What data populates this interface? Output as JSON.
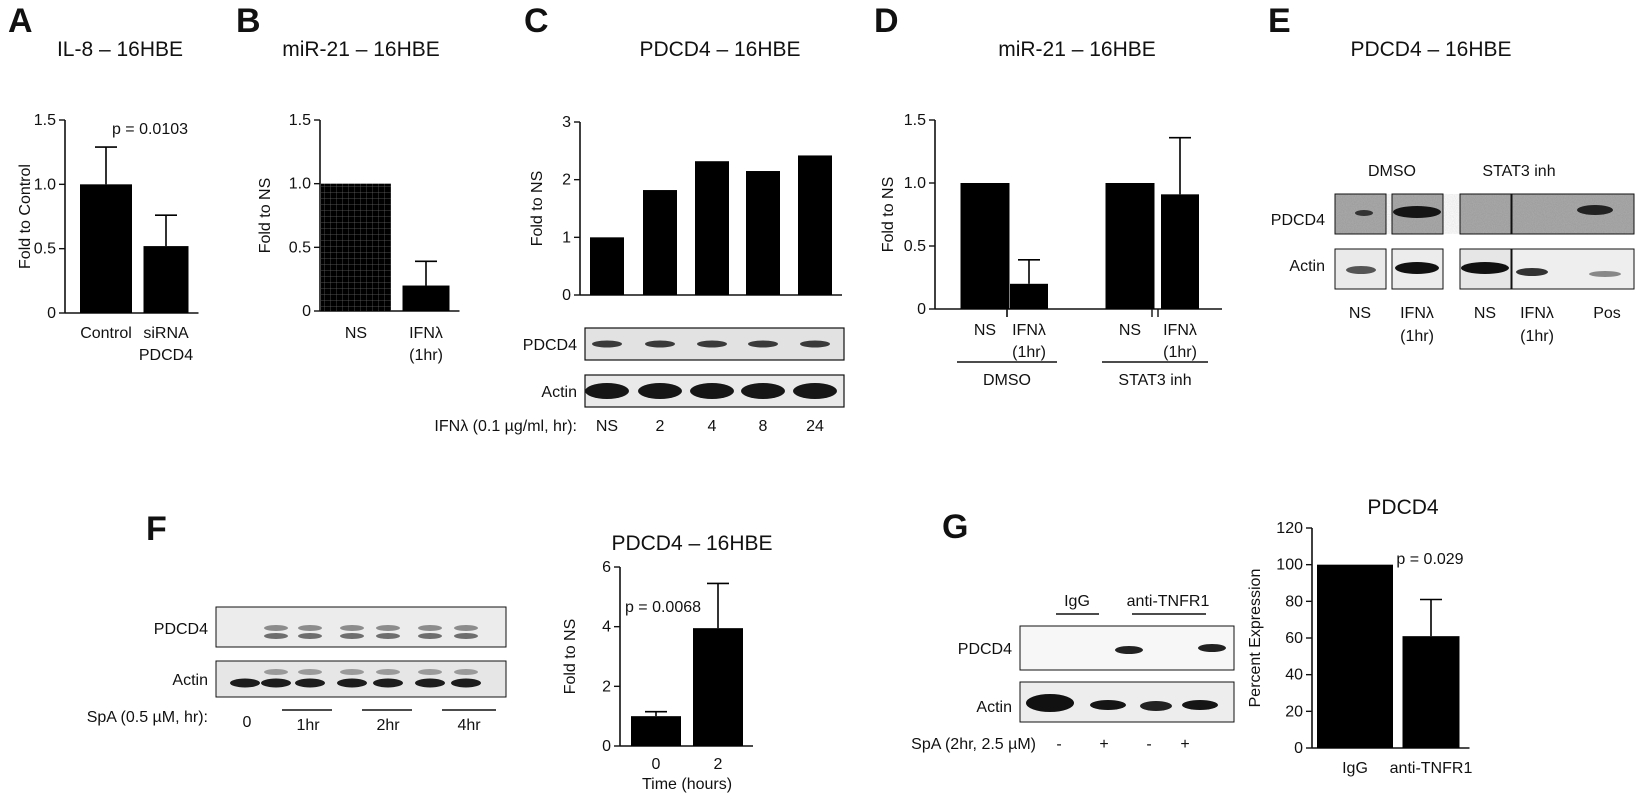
{
  "panels": {
    "A": "A",
    "B": "B",
    "C": "C",
    "D": "D",
    "E": "E",
    "F": "F",
    "G": "G"
  },
  "chart_data": [
    {
      "id": "A",
      "type": "bar",
      "title": "IL-8 – 16HBE",
      "ylabel": "Fold to Control",
      "categories": [
        [
          "Control"
        ],
        [
          "siRNA",
          "PDCD4"
        ]
      ],
      "values": [
        1.0,
        0.52
      ],
      "errors": [
        0.29,
        0.24
      ],
      "ylim": [
        0,
        1.5
      ],
      "yticks": [
        "0",
        "0.5",
        "1.0",
        "1.5"
      ],
      "annotation": "p = 0.0103"
    },
    {
      "id": "B",
      "type": "bar",
      "title": "miR-21 – 16HBE",
      "ylabel": "Fold to NS",
      "categories": [
        [
          "NS"
        ],
        [
          "IFNλ",
          "(1hr)"
        ]
      ],
      "values": [
        1.0,
        0.2
      ],
      "errors": [
        0,
        0.19
      ],
      "ylim": [
        0,
        1.5
      ],
      "yticks": [
        "0",
        "0.5",
        "1.0",
        "1.5"
      ]
    },
    {
      "id": "C",
      "type": "bar",
      "title": "PDCD4 – 16HBE",
      "ylabel": "Fold to NS",
      "categories": [
        "NS",
        "2",
        "4",
        "8",
        "24"
      ],
      "values": [
        1.0,
        1.82,
        2.32,
        2.15,
        2.42
      ],
      "ylim": [
        0,
        3
      ],
      "yticks": [
        "0",
        "1",
        "2",
        "3"
      ],
      "blot_rows": [
        "PDCD4",
        "Actin"
      ],
      "condition_label": "IFNλ (0.1 µg/ml, hr):"
    },
    {
      "id": "D",
      "type": "bar",
      "title": "miR-21 – 16HBE",
      "ylabel": "Fold to NS",
      "categories": [
        [
          "NS"
        ],
        [
          "IFNλ",
          "(1hr)"
        ],
        [
          "NS"
        ],
        [
          "IFNλ",
          "(1hr)"
        ]
      ],
      "values": [
        1.0,
        0.2,
        1.0,
        0.91
      ],
      "errors": [
        0,
        0.19,
        0,
        0.45
      ],
      "ylim": [
        0,
        1.5
      ],
      "yticks": [
        "0",
        "0.5",
        "1.0",
        "1.5"
      ],
      "groups": [
        "DMSO",
        "STAT3 inh"
      ]
    },
    {
      "id": "F",
      "type": "bar",
      "title": "PDCD4 – 16HBE",
      "ylabel": "Fold to NS",
      "xlabel": "Time (hours)",
      "categories": [
        "0",
        "2"
      ],
      "values": [
        1.0,
        3.95
      ],
      "errors": [
        0.15,
        1.5
      ],
      "ylim": [
        0,
        6
      ],
      "yticks": [
        "0",
        "2",
        "4",
        "6"
      ],
      "annotation": "p = 0.0068"
    },
    {
      "id": "G",
      "type": "bar",
      "title": "PDCD4",
      "ylabel": "Percent Expression",
      "categories": [
        "IgG",
        "anti-TNFR1"
      ],
      "values": [
        100,
        61
      ],
      "errors": [
        0,
        20
      ],
      "ylim": [
        0,
        120
      ],
      "yticks": [
        "0",
        "20",
        "40",
        "60",
        "80",
        "100",
        "120"
      ],
      "annotation": "p = 0.029"
    }
  ],
  "blots": {
    "E": {
      "title": "PDCD4 – 16HBE",
      "groups": [
        "DMSO",
        "STAT3 inh"
      ],
      "rows": [
        "PDCD4",
        "Actin"
      ],
      "lanes": [
        [
          "NS"
        ],
        [
          "IFNλ",
          "(1hr)"
        ],
        [
          "NS"
        ],
        [
          "IFNλ",
          "(1hr)"
        ],
        [
          "Pos"
        ]
      ]
    },
    "F": {
      "rows": [
        "PDCD4",
        "Actin"
      ],
      "condition_label": "SpA (0.5 µM, hr):",
      "lanes": [
        "0",
        "1hr",
        "2hr",
        "4hr"
      ]
    },
    "G": {
      "groups": [
        "IgG",
        "anti-TNFR1"
      ],
      "rows": [
        "PDCD4",
        "Actin"
      ],
      "condition_label": "SpA (2hr, 2.5 µM)",
      "lanes": [
        "-",
        "+",
        "-",
        "+"
      ]
    }
  }
}
